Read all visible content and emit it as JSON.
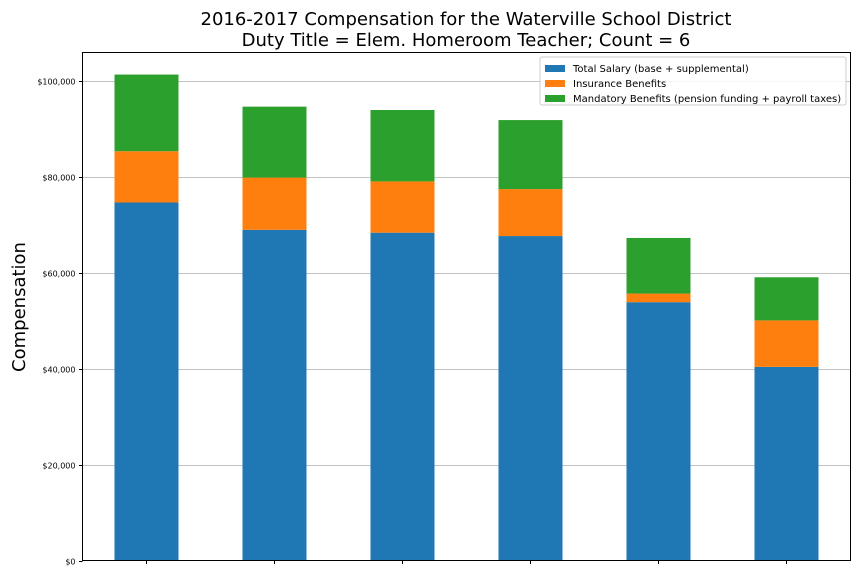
{
  "chart_data": {
    "type": "bar",
    "stacked": true,
    "title": "2016-2017 Compensation for the Waterville School District",
    "subtitle": "Duty Title = Elem. Homeroom Teacher; Count = 6",
    "xlabel": "",
    "ylabel": "Compensation",
    "ylim": [
      0,
      106000
    ],
    "yticks": [
      0,
      20000,
      40000,
      60000,
      80000,
      100000
    ],
    "ytick_labels": [
      "$0",
      "$20,000",
      "$40,000",
      "$60,000",
      "$80,000",
      "$100,000"
    ],
    "grid": "horizontal",
    "legend_position": "top-right",
    "categories": [
      "",
      "",
      "",
      "",
      "",
      ""
    ],
    "series": [
      {
        "name": "Total Salary (base + supplemental)",
        "color": "#1f77b4",
        "values": [
          74700,
          69000,
          68400,
          67700,
          53900,
          40400
        ]
      },
      {
        "name": "Insurance Benefits",
        "color": "#ff7f0e",
        "values": [
          10700,
          10900,
          10700,
          9800,
          1800,
          9700
        ]
      },
      {
        "name": "Mandatory Benefits (pension funding + payroll taxes)",
        "color": "#2ca02c",
        "values": [
          16000,
          14800,
          14900,
          14400,
          11600,
          9000
        ]
      }
    ]
  }
}
